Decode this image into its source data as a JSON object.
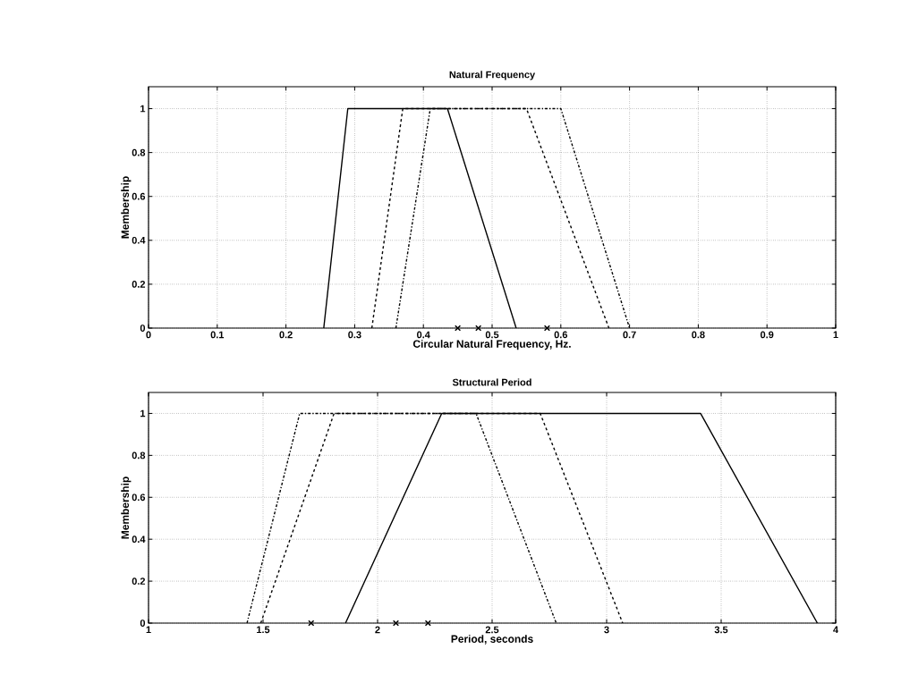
{
  "chart_data": [
    {
      "type": "line",
      "title": "Natural Frequency",
      "xlabel": "Circular Natural Frequency, Hz.",
      "ylabel": "Membership",
      "xlim": [
        0,
        1
      ],
      "ylim": [
        0,
        1.1
      ],
      "xticks": [
        0,
        0.1,
        0.2,
        0.3,
        0.4,
        0.5,
        0.6,
        0.7,
        0.8,
        0.9,
        1
      ],
      "yticks": [
        0,
        0.2,
        0.4,
        0.6,
        0.8,
        1
      ],
      "grid": true,
      "series": [
        {
          "color": "#000000",
          "line_style": "solid",
          "x": [
            0.255,
            0.29,
            0.435,
            0.535
          ],
          "values": [
            0,
            1,
            1,
            0
          ]
        },
        {
          "color": "#000000",
          "line_style": "dashed",
          "x": [
            0.325,
            0.37,
            0.55,
            0.67
          ],
          "values": [
            0,
            1,
            1,
            0
          ]
        },
        {
          "color": "#000000",
          "line_style": "dashdot",
          "x": [
            0.36,
            0.41,
            0.6,
            0.7
          ],
          "values": [
            0,
            1,
            1,
            0
          ]
        },
        {
          "type": "scatter",
          "marker": "cross",
          "color": "#000000",
          "x": [
            0.45,
            0.48,
            0.58
          ],
          "values": [
            0,
            0,
            0
          ]
        }
      ]
    },
    {
      "type": "line",
      "title": "Structural Period",
      "xlabel": "Period, seconds",
      "ylabel": "Membership",
      "xlim": [
        1,
        4
      ],
      "ylim": [
        0,
        1.1
      ],
      "xticks": [
        1,
        1.5,
        2,
        2.5,
        3,
        3.5,
        4
      ],
      "yticks": [
        0,
        0.2,
        0.4,
        0.6,
        0.8,
        1
      ],
      "grid": true,
      "series": [
        {
          "color": "#000000",
          "line_style": "solid",
          "x": [
            1.86,
            2.28,
            3.41,
            3.92
          ],
          "values": [
            0,
            1,
            1,
            0
          ]
        },
        {
          "color": "#000000",
          "line_style": "dashed",
          "x": [
            1.49,
            1.81,
            2.71,
            3.07
          ],
          "values": [
            0,
            1,
            1,
            0
          ]
        },
        {
          "color": "#000000",
          "line_style": "dashdot",
          "x": [
            1.43,
            1.66,
            2.43,
            2.78
          ],
          "values": [
            0,
            1,
            1,
            0
          ]
        },
        {
          "type": "scatter",
          "marker": "cross",
          "color": "#000000",
          "x": [
            1.71,
            2.08,
            2.22
          ],
          "values": [
            0,
            0,
            0
          ]
        }
      ]
    }
  ]
}
